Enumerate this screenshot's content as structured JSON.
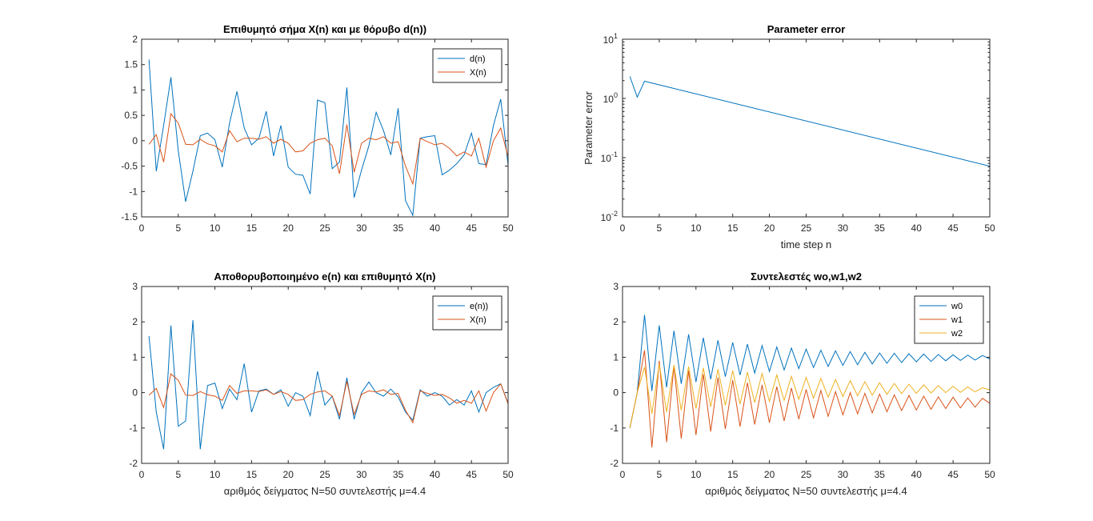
{
  "colors": {
    "blue": "#0072BD",
    "orange": "#D95319",
    "yellow": "#EDB120",
    "axis": "#262626"
  },
  "chart_data": [
    {
      "type": "line",
      "title": "Επιθυμητό σήμα X(n) και με θόρυβο d(n))",
      "xlabel": "",
      "ylabel": "",
      "xlim": [
        0,
        50
      ],
      "ylim": [
        -1.5,
        2
      ],
      "xticks": [
        0,
        5,
        10,
        15,
        20,
        25,
        30,
        35,
        40,
        45,
        50
      ],
      "yticks": [
        -1.5,
        -1,
        -0.5,
        0,
        0.5,
        1,
        1.5,
        2
      ],
      "legend_position": "top-right",
      "series": [
        {
          "name": "d(n)",
          "color": "#0072BD",
          "x": [
            1,
            2,
            3,
            4,
            5,
            6,
            7,
            8,
            9,
            10,
            11,
            12,
            13,
            14,
            15,
            16,
            17,
            18,
            19,
            20,
            21,
            22,
            23,
            24,
            25,
            26,
            27,
            28,
            29,
            30,
            31,
            32,
            33,
            34,
            35,
            36,
            37,
            38,
            39,
            40,
            41,
            42,
            43,
            44,
            45,
            46,
            47,
            48,
            49,
            50
          ],
          "y": [
            1.6,
            -0.6,
            0.3,
            1.25,
            -0.2,
            -1.2,
            -0.6,
            0.1,
            0.15,
            0.02,
            -0.52,
            0.35,
            0.97,
            0.25,
            -0.08,
            0.05,
            0.58,
            -0.3,
            0.3,
            -0.52,
            -0.66,
            -0.68,
            -1.05,
            0.8,
            0.75,
            -0.55,
            -0.42,
            1.05,
            -1.12,
            -0.58,
            -0.1,
            0.56,
            0.2,
            -0.28,
            0.64,
            -1.18,
            -1.47,
            0.05,
            0.08,
            0.1,
            -0.67,
            -0.58,
            -0.45,
            -0.28,
            0.15,
            -0.45,
            -0.47,
            0.3,
            0.82,
            -0.48
          ]
        },
        {
          "name": "X(n)",
          "color": "#D95319",
          "x": [
            1,
            2,
            3,
            4,
            5,
            6,
            7,
            8,
            9,
            10,
            11,
            12,
            13,
            14,
            15,
            16,
            17,
            18,
            19,
            20,
            21,
            22,
            23,
            24,
            25,
            26,
            27,
            28,
            29,
            30,
            31,
            32,
            33,
            34,
            35,
            36,
            37,
            38,
            39,
            40,
            41,
            42,
            43,
            44,
            45,
            46,
            47,
            48,
            49,
            50
          ],
          "y": [
            -0.07,
            0.12,
            -0.42,
            0.53,
            0.35,
            -0.07,
            -0.08,
            0.03,
            -0.06,
            -0.1,
            -0.22,
            0.2,
            -0.02,
            0.05,
            0.05,
            0.03,
            0.08,
            -0.05,
            0.03,
            -0.05,
            -0.22,
            -0.2,
            -0.05,
            0.02,
            0.05,
            -0.1,
            -0.65,
            0.32,
            -0.62,
            -0.05,
            0.05,
            0.02,
            0.08,
            -0.05,
            -0.02,
            -0.5,
            -0.85,
            0.05,
            -0.02,
            -0.08,
            -0.05,
            -0.15,
            -0.3,
            -0.22,
            -0.3,
            0.05,
            -0.52,
            0.0,
            0.25,
            -0.32
          ]
        }
      ]
    },
    {
      "type": "line",
      "title": "Parameter error",
      "xlabel": "time step n",
      "ylabel": "Parameter error",
      "xlim": [
        0,
        50
      ],
      "yscale": "log",
      "ylim": [
        0.01,
        10
      ],
      "xticks": [
        0,
        5,
        10,
        15,
        20,
        25,
        30,
        35,
        40,
        45,
        50
      ],
      "yticks": [
        {
          "base": "10",
          "exp": "1",
          "value": 10
        },
        {
          "base": "10",
          "exp": "0",
          "value": 1
        },
        {
          "base": "10",
          "exp": "-1",
          "value": 0.1
        },
        {
          "base": "10",
          "exp": "-2",
          "value": 0.01
        }
      ],
      "series": [
        {
          "color": "#0072BD",
          "x": [
            1,
            2,
            3,
            50
          ],
          "y": [
            2.35,
            1.05,
            1.95,
            0.072
          ]
        }
      ]
    },
    {
      "type": "line",
      "title": "Αποθορυβοποιημένο e(n) και επιθυμητό X(n)",
      "xlabel": "αριθμός δείγματος N=50 συντελεστής μ=4.4",
      "ylabel": "",
      "xlim": [
        0,
        50
      ],
      "ylim": [
        -2,
        3
      ],
      "xticks": [
        0,
        5,
        10,
        15,
        20,
        25,
        30,
        35,
        40,
        45,
        50
      ],
      "yticks": [
        -2,
        -1,
        0,
        1,
        2,
        3
      ],
      "legend_position": "top-right",
      "series": [
        {
          "name": "e(n))",
          "color": "#0072BD",
          "x": [
            1,
            2,
            3,
            4,
            5,
            6,
            7,
            8,
            9,
            10,
            11,
            12,
            13,
            14,
            15,
            16,
            17,
            18,
            19,
            20,
            21,
            22,
            23,
            24,
            25,
            26,
            27,
            28,
            29,
            30,
            31,
            32,
            33,
            34,
            35,
            36,
            37,
            38,
            39,
            40,
            41,
            42,
            43,
            44,
            45,
            46,
            47,
            48,
            49,
            50
          ],
          "y": [
            1.6,
            -0.55,
            -1.6,
            1.9,
            -0.95,
            -0.8,
            2.05,
            -1.6,
            0.2,
            0.27,
            -0.45,
            0.1,
            -0.2,
            0.82,
            -0.55,
            0.05,
            0.1,
            -0.05,
            0.08,
            -0.38,
            0.0,
            -0.1,
            -0.65,
            0.6,
            -0.35,
            -0.1,
            -0.75,
            0.42,
            -0.75,
            0.0,
            0.3,
            0.0,
            -0.1,
            0.1,
            -0.12,
            -0.55,
            -0.78,
            0.08,
            -0.1,
            0.0,
            -0.1,
            -0.35,
            -0.2,
            -0.35,
            0.05,
            -0.55,
            0.0,
            0.15,
            0.25,
            -0.3
          ]
        },
        {
          "name": "X(n)",
          "color": "#D95319",
          "x": [
            1,
            2,
            3,
            4,
            5,
            6,
            7,
            8,
            9,
            10,
            11,
            12,
            13,
            14,
            15,
            16,
            17,
            18,
            19,
            20,
            21,
            22,
            23,
            24,
            25,
            26,
            27,
            28,
            29,
            30,
            31,
            32,
            33,
            34,
            35,
            36,
            37,
            38,
            39,
            40,
            41,
            42,
            43,
            44,
            45,
            46,
            47,
            48,
            49,
            50
          ],
          "y": [
            -0.07,
            0.12,
            -0.42,
            0.53,
            0.35,
            -0.07,
            -0.08,
            0.03,
            -0.06,
            -0.1,
            -0.22,
            0.2,
            -0.02,
            0.05,
            0.05,
            0.03,
            0.08,
            -0.05,
            0.03,
            -0.05,
            -0.22,
            -0.2,
            -0.05,
            0.02,
            0.05,
            -0.1,
            -0.65,
            0.32,
            -0.62,
            -0.05,
            0.05,
            0.02,
            0.08,
            -0.05,
            -0.02,
            -0.5,
            -0.85,
            0.05,
            -0.02,
            -0.08,
            -0.05,
            -0.15,
            -0.3,
            -0.22,
            -0.3,
            0.05,
            -0.52,
            0.0,
            0.25,
            -0.32
          ]
        }
      ]
    },
    {
      "type": "line",
      "title": "Συντελεστές wo,w1,w2",
      "xlabel": "αριθμός δείγματος N=50 συντελεστής μ=4.4",
      "ylabel": "",
      "xlim": [
        0,
        50
      ],
      "ylim": [
        -2,
        3
      ],
      "xticks": [
        0,
        5,
        10,
        15,
        20,
        25,
        30,
        35,
        40,
        45,
        50
      ],
      "yticks": [
        -2,
        -1,
        0,
        1,
        2,
        3
      ],
      "legend_position": "top-right",
      "series": [
        {
          "name": "w0",
          "color": "#0072BD",
          "x": [
            1,
            2,
            3,
            4,
            5,
            6,
            7,
            8,
            9,
            10,
            11,
            12,
            13,
            14,
            15,
            16,
            17,
            18,
            19,
            20,
            21,
            22,
            23,
            24,
            25,
            26,
            27,
            28,
            29,
            30,
            31,
            32,
            33,
            34,
            35,
            36,
            37,
            38,
            39,
            40,
            41,
            42,
            43,
            44,
            45,
            46,
            47,
            48,
            49,
            50
          ],
          "y": [
            -1.0,
            0.0,
            2.2,
            0.05,
            1.9,
            0.15,
            1.75,
            0.25,
            1.65,
            0.3,
            1.55,
            0.38,
            1.48,
            0.45,
            1.42,
            0.5,
            1.37,
            0.55,
            1.33,
            0.6,
            1.29,
            0.64,
            1.26,
            0.68,
            1.23,
            0.71,
            1.2,
            0.74,
            1.18,
            0.77,
            1.16,
            0.79,
            1.14,
            0.81,
            1.12,
            0.83,
            1.11,
            0.85,
            1.1,
            0.87,
            1.09,
            0.88,
            1.08,
            0.9,
            1.07,
            0.91,
            1.06,
            0.92,
            1.05,
            0.95
          ]
        },
        {
          "name": "w1",
          "color": "#D95319",
          "x": [
            1,
            2,
            3,
            4,
            5,
            6,
            7,
            8,
            9,
            10,
            11,
            12,
            13,
            14,
            15,
            16,
            17,
            18,
            19,
            20,
            21,
            22,
            23,
            24,
            25,
            26,
            27,
            28,
            29,
            30,
            31,
            32,
            33,
            34,
            35,
            36,
            37,
            38,
            39,
            40,
            41,
            42,
            43,
            44,
            45,
            46,
            47,
            48,
            49,
            50
          ],
          "y": [
            -1.0,
            0.0,
            1.2,
            -1.55,
            0.9,
            -1.4,
            0.75,
            -1.3,
            0.62,
            -1.2,
            0.52,
            -1.1,
            0.43,
            -1.03,
            0.35,
            -0.96,
            0.28,
            -0.9,
            0.22,
            -0.85,
            0.17,
            -0.8,
            0.13,
            -0.75,
            0.09,
            -0.71,
            0.06,
            -0.67,
            0.03,
            -0.63,
            0.0,
            -0.6,
            -0.02,
            -0.57,
            -0.04,
            -0.54,
            -0.06,
            -0.51,
            -0.08,
            -0.49,
            -0.1,
            -0.47,
            -0.12,
            -0.45,
            -0.13,
            -0.43,
            -0.15,
            -0.41,
            -0.16,
            -0.3
          ]
        },
        {
          "name": "w2",
          "color": "#EDB120",
          "x": [
            1,
            2,
            3,
            4,
            5,
            6,
            7,
            8,
            9,
            10,
            11,
            12,
            13,
            14,
            15,
            16,
            17,
            18,
            19,
            20,
            21,
            22,
            23,
            24,
            25,
            26,
            27,
            28,
            29,
            30,
            31,
            32,
            33,
            34,
            35,
            36,
            37,
            38,
            39,
            40,
            41,
            42,
            43,
            44,
            45,
            46,
            47,
            48,
            49,
            50
          ],
          "y": [
            -1.0,
            0.0,
            0.72,
            -0.6,
            0.82,
            -0.55,
            0.78,
            -0.5,
            0.74,
            -0.45,
            0.7,
            -0.4,
            0.66,
            -0.36,
            0.62,
            -0.32,
            0.58,
            -0.28,
            0.54,
            -0.25,
            0.5,
            -0.22,
            0.46,
            -0.19,
            0.43,
            -0.16,
            0.4,
            -0.13,
            0.37,
            -0.11,
            0.34,
            -0.09,
            0.31,
            -0.07,
            0.28,
            -0.05,
            0.26,
            -0.03,
            0.24,
            -0.02,
            0.22,
            -0.01,
            0.2,
            0.0,
            0.18,
            0.01,
            0.16,
            0.02,
            0.14,
            0.08
          ]
        }
      ]
    }
  ]
}
